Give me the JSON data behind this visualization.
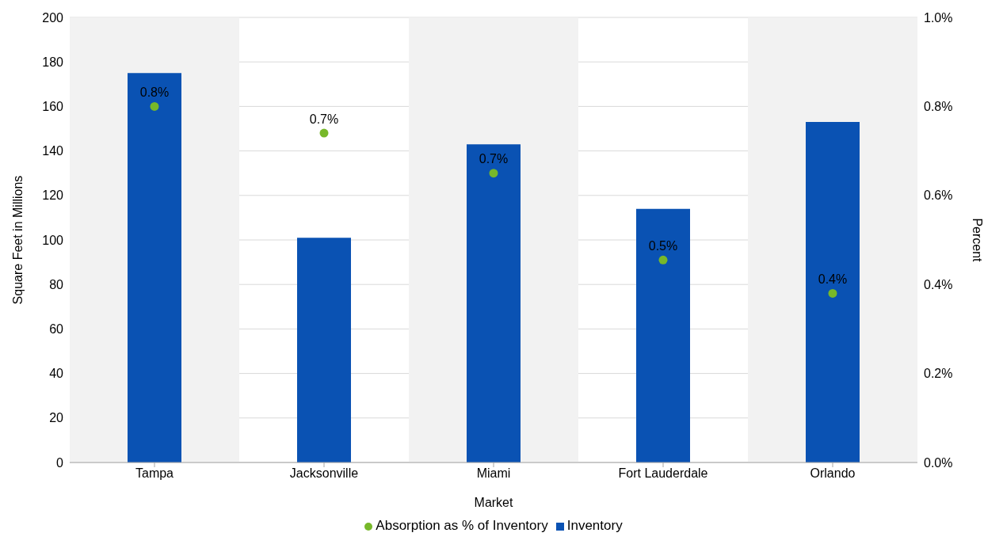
{
  "chart_data": {
    "type": "bar",
    "xlabel": "Market",
    "ylabel": "Square Feet in Millions",
    "y2label": "Percent",
    "categories": [
      "Tampa",
      "Jacksonville",
      "Miami",
      "Fort Lauderdale",
      "Orlando"
    ],
    "series": [
      {
        "name": "Inventory",
        "color": "#0a52b3",
        "values": [
          175,
          101,
          143,
          114,
          153
        ]
      },
      {
        "name": "Absorption as % of Inventory",
        "type": "scatter",
        "axis": "y2",
        "color": "#77b82a",
        "values": [
          0.8,
          0.74,
          0.65,
          0.455,
          0.38
        ],
        "value_labels": [
          "0.8%",
          "0.7%",
          "0.7%",
          "0.5%",
          "0.4%"
        ]
      }
    ],
    "ylim": [
      0,
      200
    ],
    "yticks": [
      0,
      20,
      40,
      60,
      80,
      100,
      120,
      140,
      160,
      180,
      200
    ],
    "y2lim": [
      0,
      1
    ],
    "y2ticks": [
      {
        "value": 0,
        "label": "0.0%"
      },
      {
        "value": 0.2,
        "label": "0.2%"
      },
      {
        "value": 0.4,
        "label": "0.4%"
      },
      {
        "value": 0.6,
        "label": "0.6%"
      },
      {
        "value": 0.8,
        "label": "0.8%"
      },
      {
        "value": 1,
        "label": "1.0%"
      }
    ],
    "bands": [
      {
        "axis": "x",
        "from": "Tampa",
        "to": "Tampa",
        "color": "#f2f2f2"
      },
      {
        "axis": "x",
        "from": "Miami",
        "to": "Miami",
        "color": "#f2f2f2"
      },
      {
        "axis": "x",
        "from": "Orlando",
        "to": "Orlando",
        "color": "#f2f2f2"
      }
    ],
    "grid": "y",
    "legend": "bottom",
    "marker": "circle"
  }
}
